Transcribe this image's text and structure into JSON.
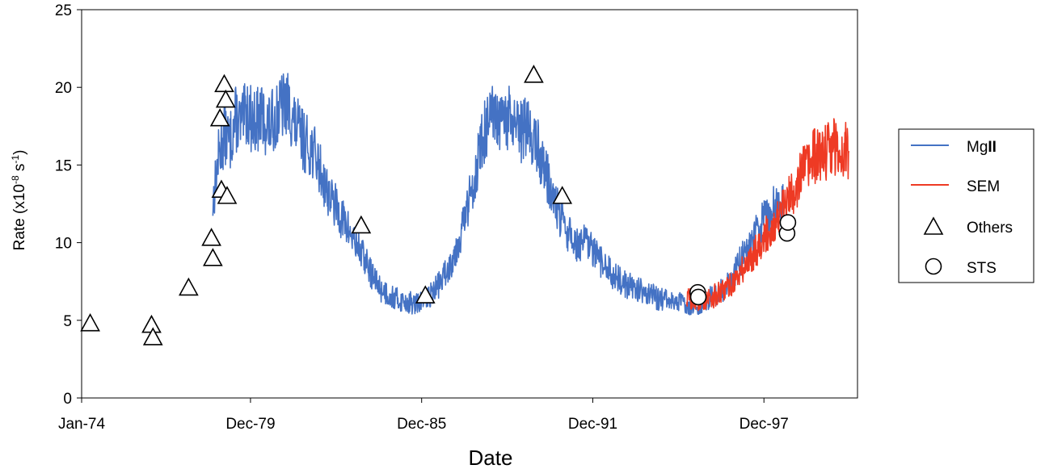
{
  "chart_data": {
    "type": "line",
    "xlabel": "Date",
    "ylabel": "Rate (x10-8 s-1)",
    "ylabel_parts": {
      "main": "Rate (x10",
      "exp1": "-8",
      "mid": " s",
      "exp2": "-1",
      "end": ")"
    },
    "x_tick_labels": [
      "Jan-74",
      "Dec-79",
      "Dec-85",
      "Dec-91",
      "Dec-97"
    ],
    "x_ticks": [
      1974.0,
      1979.92,
      1985.92,
      1991.92,
      1997.92
    ],
    "xlim": [
      1974.0,
      2001.2
    ],
    "y_ticks": [
      0,
      5,
      10,
      15,
      20,
      25
    ],
    "ylim": [
      0,
      25
    ],
    "grid": false,
    "legend_position": "right",
    "legend": {
      "mg_label_main": "Mg",
      "mg_label_bold": "II",
      "sem": "SEM",
      "others": "Others",
      "sts": "STS"
    },
    "colors": {
      "mg": "#4472C4",
      "sem": "#EE3A24"
    },
    "series": [
      {
        "name": "MgII",
        "style": "line",
        "color": "#4472C4",
        "x": [
          1978.6,
          1978.8,
          1979.0,
          1979.2,
          1979.4,
          1979.6,
          1979.8,
          1980.0,
          1980.3,
          1980.6,
          1980.9,
          1981.2,
          1981.5,
          1981.8,
          1982.1,
          1982.4,
          1982.7,
          1983.0,
          1983.3,
          1983.6,
          1983.9,
          1984.2,
          1984.5,
          1984.8,
          1985.1,
          1985.4,
          1985.7,
          1986.0,
          1986.3,
          1986.6,
          1986.9,
          1987.2,
          1987.5,
          1987.8,
          1988.1,
          1988.4,
          1988.7,
          1989.0,
          1989.3,
          1989.6,
          1989.9,
          1990.2,
          1990.5,
          1990.8,
          1991.1,
          1991.4,
          1991.7,
          1992.0,
          1992.3,
          1992.6,
          1992.9,
          1993.2,
          1993.5,
          1993.8,
          1994.1,
          1994.4,
          1994.7,
          1995.0,
          1995.3,
          1995.6,
          1995.9,
          1996.2,
          1996.5,
          1996.8,
          1997.1,
          1997.4,
          1997.7,
          1998.0,
          1998.3,
          1998.6
        ],
        "y": [
          12.5,
          15.5,
          17.0,
          16.5,
          18.0,
          17.5,
          18.5,
          17.8,
          18.0,
          17.5,
          18.5,
          19.0,
          17.5,
          16.5,
          16.0,
          14.5,
          13.0,
          12.0,
          11.0,
          10.0,
          9.0,
          7.8,
          7.0,
          6.6,
          6.3,
          6.2,
          6.0,
          6.3,
          6.8,
          7.5,
          8.5,
          10.0,
          12.0,
          14.5,
          17.0,
          18.0,
          17.5,
          18.0,
          17.0,
          17.5,
          16.5,
          15.0,
          13.0,
          11.5,
          10.5,
          9.8,
          10.0,
          9.2,
          8.5,
          8.0,
          7.5,
          7.2,
          7.0,
          6.8,
          6.5,
          6.3,
          6.2,
          6.1,
          6.0,
          6.1,
          6.3,
          6.6,
          7.0,
          7.8,
          8.8,
          9.8,
          10.8,
          11.8,
          12.3,
          12.6
        ]
      },
      {
        "name": "SEM",
        "style": "line",
        "color": "#EE3A24",
        "x": [
          1995.2,
          1995.5,
          1995.8,
          1996.1,
          1996.4,
          1996.7,
          1997.0,
          1997.3,
          1997.6,
          1997.9,
          1998.2,
          1998.5,
          1998.8,
          1999.1,
          1999.4,
          1999.7,
          2000.0,
          2000.3,
          2000.6,
          2000.9
        ],
        "y": [
          6.5,
          6.3,
          6.4,
          6.5,
          6.7,
          7.2,
          7.8,
          8.5,
          9.5,
          10.2,
          11.0,
          11.8,
          12.8,
          14.0,
          14.8,
          15.5,
          15.8,
          16.2,
          16.0,
          15.8
        ]
      },
      {
        "name": "Others",
        "style": "triangle",
        "x": [
          1974.3,
          1976.45,
          1976.5,
          1977.75,
          1978.55,
          1978.6,
          1978.9,
          1979.0,
          1979.05,
          1978.85,
          1979.1,
          1983.8,
          1986.05,
          1989.85,
          1990.85
        ],
        "y": [
          4.8,
          4.7,
          3.9,
          7.1,
          10.3,
          9.0,
          13.4,
          20.2,
          19.2,
          18.0,
          13.0,
          11.1,
          6.6,
          20.8,
          13.0
        ]
      },
      {
        "name": "STS",
        "style": "circle",
        "x": [
          1995.6,
          1995.62,
          1998.73,
          1998.76
        ],
        "y": [
          6.8,
          6.5,
          10.6,
          11.3
        ]
      }
    ]
  }
}
